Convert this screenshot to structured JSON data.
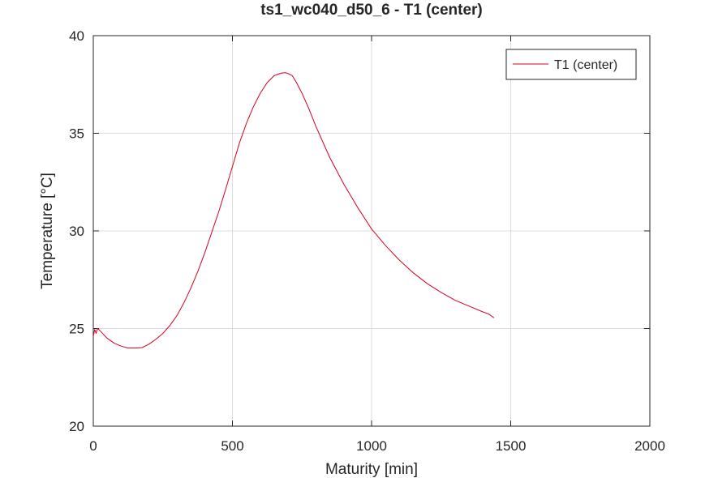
{
  "chart_data": {
    "type": "line",
    "title": "ts1_wc040_d50_6 - T1 (center)",
    "xlabel": "Maturity [min]",
    "ylabel": "Temperature [°C]",
    "xlim": [
      0,
      2000
    ],
    "ylim": [
      20,
      40
    ],
    "xticks": [
      0,
      500,
      1000,
      1500,
      2000
    ],
    "yticks": [
      20,
      25,
      30,
      35,
      40
    ],
    "xtick_labels": [
      "0",
      "500",
      "1000",
      "1500",
      "2000"
    ],
    "ytick_labels": [
      "20",
      "25",
      "30",
      "35",
      "40"
    ],
    "grid": true,
    "legend_position": "top-right",
    "series": [
      {
        "name": "T1 (center)",
        "color": "#d6001c",
        "x": [
          0,
          5,
          10,
          15,
          20,
          30,
          50,
          75,
          100,
          125,
          150,
          175,
          200,
          225,
          250,
          275,
          300,
          325,
          350,
          375,
          400,
          425,
          450,
          475,
          500,
          525,
          550,
          575,
          600,
          625,
          650,
          675,
          690,
          700,
          715,
          730,
          750,
          775,
          800,
          850,
          900,
          950,
          1000,
          1050,
          1100,
          1150,
          1200,
          1250,
          1300,
          1350,
          1400,
          1420,
          1440
        ],
        "y": [
          24.6,
          24.95,
          24.75,
          25.0,
          24.95,
          24.8,
          24.5,
          24.25,
          24.1,
          24.0,
          24.0,
          24.02,
          24.2,
          24.45,
          24.75,
          25.15,
          25.65,
          26.3,
          27.05,
          27.9,
          28.85,
          29.9,
          30.95,
          32.1,
          33.3,
          34.5,
          35.5,
          36.35,
          37.05,
          37.6,
          37.95,
          38.08,
          38.1,
          38.06,
          37.95,
          37.6,
          37.05,
          36.25,
          35.35,
          33.75,
          32.4,
          31.2,
          30.1,
          29.25,
          28.5,
          27.85,
          27.3,
          26.85,
          26.45,
          26.15,
          25.85,
          25.75,
          25.55
        ]
      }
    ]
  }
}
